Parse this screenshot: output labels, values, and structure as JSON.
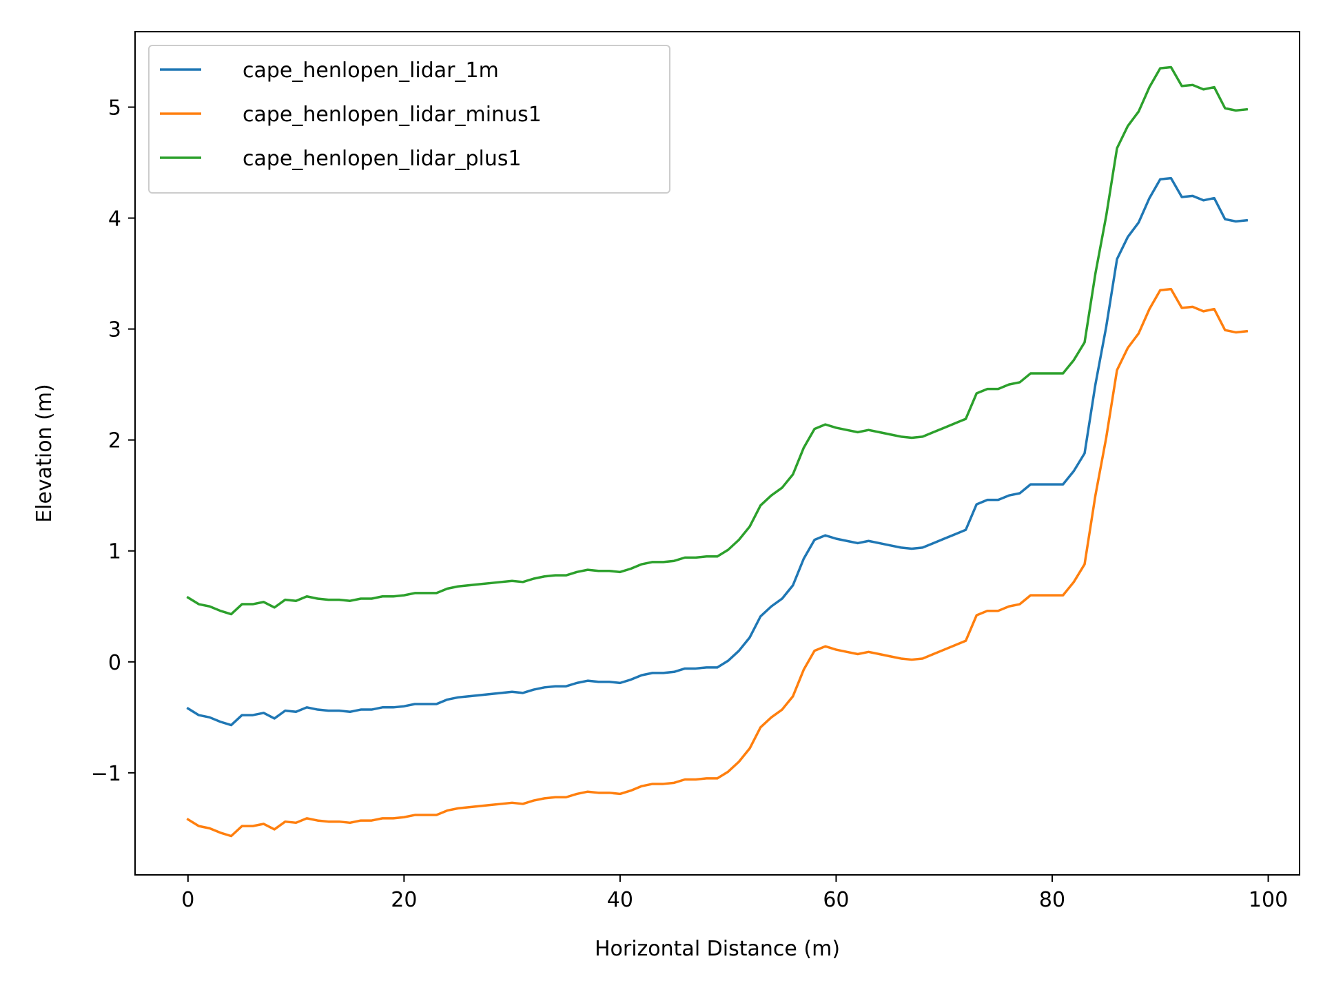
{
  "chart_data": {
    "type": "line",
    "xlabel": "Horizontal Distance (m)",
    "ylabel": "Elevation (m)",
    "xlim": [
      -4.9,
      102.9
    ],
    "ylim": [
      -1.92,
      5.68
    ],
    "xticks": [
      0,
      20,
      40,
      60,
      80,
      100
    ],
    "xtick_labels": [
      "0",
      "20",
      "40",
      "60",
      "80",
      "100"
    ],
    "yticks": [
      -1,
      0,
      1,
      2,
      3,
      4,
      5
    ],
    "ytick_labels": [
      "−1",
      "0",
      "1",
      "2",
      "3",
      "4",
      "5"
    ],
    "grid": false,
    "legend_position": "upper-left",
    "x": [
      0,
      1,
      2,
      3,
      4,
      5,
      6,
      7,
      8,
      9,
      10,
      11,
      12,
      13,
      14,
      15,
      16,
      17,
      18,
      19,
      20,
      21,
      22,
      23,
      24,
      25,
      26,
      27,
      28,
      29,
      30,
      31,
      32,
      33,
      34,
      35,
      36,
      37,
      38,
      39,
      40,
      41,
      42,
      43,
      44,
      45,
      46,
      47,
      48,
      49,
      50,
      51,
      52,
      53,
      54,
      55,
      56,
      57,
      58,
      59,
      60,
      61,
      62,
      63,
      64,
      65,
      66,
      67,
      68,
      69,
      70,
      71,
      72,
      73,
      74,
      75,
      76,
      77,
      78,
      79,
      80,
      81,
      82,
      83,
      84,
      85,
      86,
      87,
      88,
      89,
      90,
      91,
      92,
      93,
      94,
      95,
      96,
      97,
      98
    ],
    "series": [
      {
        "name": "cape_henlopen_lidar_1m",
        "color": "#1f77b4",
        "values": [
          -0.42,
          -0.48,
          -0.5,
          -0.54,
          -0.57,
          -0.48,
          -0.48,
          -0.46,
          -0.51,
          -0.44,
          -0.45,
          -0.41,
          -0.43,
          -0.44,
          -0.44,
          -0.45,
          -0.43,
          -0.43,
          -0.41,
          -0.41,
          -0.4,
          -0.38,
          -0.38,
          -0.38,
          -0.34,
          -0.32,
          -0.31,
          -0.3,
          -0.29,
          -0.28,
          -0.27,
          -0.28,
          -0.25,
          -0.23,
          -0.22,
          -0.22,
          -0.19,
          -0.17,
          -0.18,
          -0.18,
          -0.19,
          -0.16,
          -0.12,
          -0.1,
          -0.1,
          -0.09,
          -0.06,
          -0.06,
          -0.05,
          -0.05,
          0.01,
          0.1,
          0.22,
          0.41,
          0.5,
          0.57,
          0.69,
          0.93,
          1.1,
          1.14,
          1.11,
          1.09,
          1.07,
          1.09,
          1.07,
          1.05,
          1.03,
          1.02,
          1.03,
          1.07,
          1.11,
          1.15,
          1.19,
          1.42,
          1.46,
          1.46,
          1.5,
          1.52,
          1.6,
          1.6,
          1.6,
          1.6,
          1.72,
          1.88,
          2.5,
          3.02,
          3.63,
          3.83,
          3.96,
          4.18,
          4.35,
          4.36,
          4.19,
          4.2,
          4.16,
          4.18,
          3.99,
          3.97,
          3.98
        ]
      },
      {
        "name": "cape_henlopen_lidar_minus1",
        "color": "#ff7f0e",
        "values": [
          -1.42,
          -1.48,
          -1.5,
          -1.54,
          -1.57,
          -1.48,
          -1.48,
          -1.46,
          -1.51,
          -1.44,
          -1.45,
          -1.41,
          -1.43,
          -1.44,
          -1.44,
          -1.45,
          -1.43,
          -1.43,
          -1.41,
          -1.41,
          -1.4,
          -1.38,
          -1.38,
          -1.38,
          -1.34,
          -1.32,
          -1.31,
          -1.3,
          -1.29,
          -1.28,
          -1.27,
          -1.28,
          -1.25,
          -1.23,
          -1.22,
          -1.22,
          -1.19,
          -1.17,
          -1.18,
          -1.18,
          -1.19,
          -1.16,
          -1.12,
          -1.1,
          -1.1,
          -1.09,
          -1.06,
          -1.06,
          -1.05,
          -1.05,
          -0.99,
          -0.9,
          -0.78,
          -0.59,
          -0.5,
          -0.43,
          -0.31,
          -0.07,
          0.1,
          0.14,
          0.11,
          0.09,
          0.07,
          0.09,
          0.07,
          0.05,
          0.03,
          0.02,
          0.03,
          0.07,
          0.11,
          0.15,
          0.19,
          0.42,
          0.46,
          0.46,
          0.5,
          0.52,
          0.6,
          0.6,
          0.6,
          0.6,
          0.72,
          0.88,
          1.5,
          2.02,
          2.63,
          2.83,
          2.96,
          3.18,
          3.35,
          3.36,
          3.19,
          3.2,
          3.16,
          3.18,
          2.99,
          2.97,
          2.98
        ]
      },
      {
        "name": "cape_henlopen_lidar_plus1",
        "color": "#2ca02c",
        "values": [
          0.58,
          0.52,
          0.5,
          0.46,
          0.43,
          0.52,
          0.52,
          0.54,
          0.49,
          0.56,
          0.55,
          0.59,
          0.57,
          0.56,
          0.56,
          0.55,
          0.57,
          0.57,
          0.59,
          0.59,
          0.6,
          0.62,
          0.62,
          0.62,
          0.66,
          0.68,
          0.69,
          0.7,
          0.71,
          0.72,
          0.73,
          0.72,
          0.75,
          0.77,
          0.78,
          0.78,
          0.81,
          0.83,
          0.82,
          0.82,
          0.81,
          0.84,
          0.88,
          0.9,
          0.9,
          0.91,
          0.94,
          0.94,
          0.95,
          0.95,
          1.01,
          1.1,
          1.22,
          1.41,
          1.5,
          1.57,
          1.69,
          1.93,
          2.1,
          2.14,
          2.11,
          2.09,
          2.07,
          2.09,
          2.07,
          2.05,
          2.03,
          2.02,
          2.03,
          2.07,
          2.11,
          2.15,
          2.19,
          2.42,
          2.46,
          2.46,
          2.5,
          2.52,
          2.6,
          2.6,
          2.6,
          2.6,
          2.72,
          2.88,
          3.5,
          4.02,
          4.63,
          4.83,
          4.96,
          5.18,
          5.35,
          5.36,
          5.19,
          5.2,
          5.16,
          5.18,
          4.99,
          4.97,
          4.98
        ]
      }
    ]
  }
}
